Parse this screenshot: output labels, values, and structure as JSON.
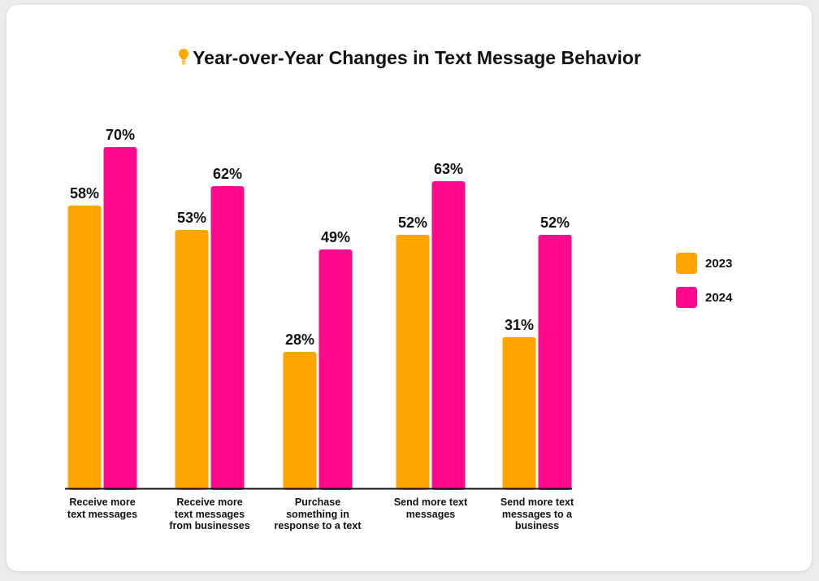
{
  "header": {
    "title": "Year-over-Year Changes in Text Message Behavior",
    "icon": "lightbulb-icon",
    "icon_color": "#ffa800"
  },
  "legend": {
    "placement": "right",
    "items": [
      {
        "label": "2023",
        "color": "#ffa500"
      },
      {
        "label": "2024",
        "color": "#ff0a8c"
      }
    ]
  },
  "chart_data": {
    "type": "bar",
    "title": "Year-over-Year Changes in Text Message Behavior",
    "xlabel": "",
    "ylabel": "",
    "ylim": [
      0,
      100
    ],
    "grid": false,
    "legend_placement": "right",
    "categories": [
      [
        "Receive more",
        "text messages"
      ],
      [
        "Receive more",
        "text messages",
        "from businesses"
      ],
      [
        "Purchase",
        "something in",
        "response to a text"
      ],
      [
        "Send more text",
        "messages"
      ],
      [
        "Send more text",
        "messages to a",
        "business"
      ]
    ],
    "series": [
      {
        "name": "2023",
        "color": "#ffa500",
        "values": [
          58,
          53,
          28,
          52,
          31
        ],
        "labels": [
          "58%",
          "53%",
          "28%",
          "52%",
          "31%"
        ]
      },
      {
        "name": "2024",
        "color": "#ff0a8c",
        "values": [
          70,
          62,
          49,
          63,
          52
        ],
        "labels": [
          "70%",
          "62%",
          "49%",
          "63%",
          "52%"
        ]
      }
    ]
  }
}
